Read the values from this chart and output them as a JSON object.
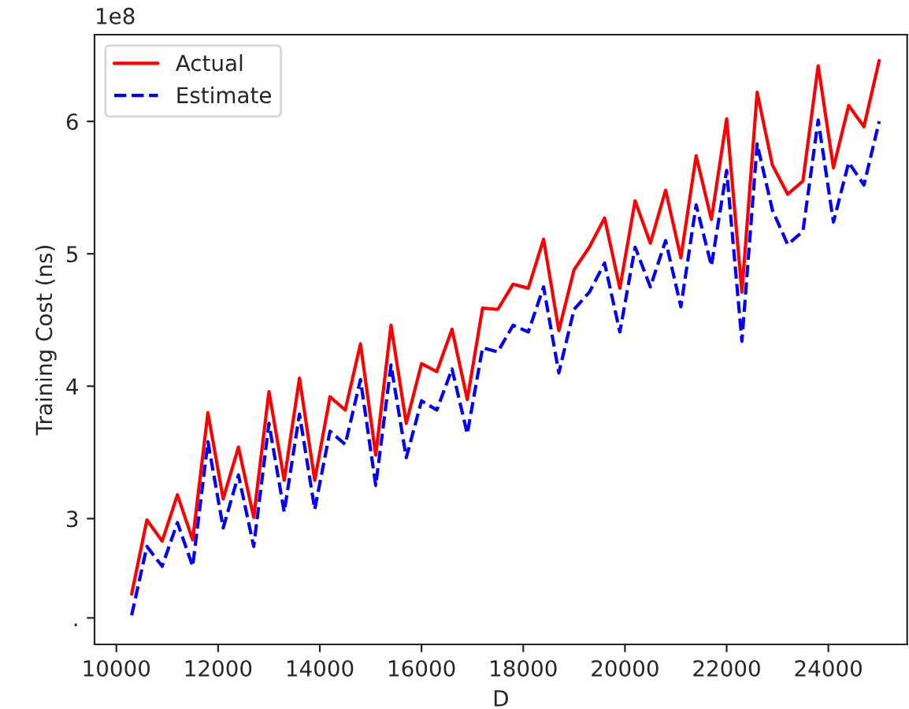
{
  "chart_data": {
    "type": "line",
    "xlabel": "D",
    "ylabel": "Training Cost (ns)",
    "x": [
      10300,
      10600,
      10900,
      11200,
      11500,
      11800,
      12100,
      12400,
      12700,
      13000,
      13300,
      13600,
      13900,
      14200,
      14500,
      14800,
      15100,
      15400,
      15700,
      16000,
      16300,
      16600,
      16900,
      17200,
      17500,
      17800,
      18100,
      18400,
      18700,
      19000,
      19300,
      19600,
      19900,
      20200,
      20500,
      20800,
      21100,
      21400,
      21700,
      22000,
      22300,
      22600,
      22900,
      23200,
      23500,
      23800,
      24100,
      24400,
      24700,
      25000
    ],
    "series": [
      {
        "name": "Actual",
        "color": "#ff0000",
        "line_style": "solid",
        "values": [
          2.43,
          2.99,
          2.83,
          3.18,
          2.84,
          3.8,
          3.15,
          3.54,
          3.01,
          3.96,
          3.29,
          4.06,
          3.29,
          3.92,
          3.82,
          4.32,
          3.48,
          4.46,
          3.72,
          4.17,
          4.11,
          4.43,
          3.9,
          4.59,
          4.58,
          4.77,
          4.74,
          5.11,
          4.42,
          4.88,
          5.05,
          5.27,
          4.74,
          5.4,
          5.08,
          5.48,
          4.97,
          5.74,
          5.26,
          6.02,
          4.71,
          6.22,
          5.67,
          5.45,
          5.55,
          6.42,
          5.65,
          6.12,
          5.96,
          6.46
        ]
      },
      {
        "name": "Estimate",
        "color": "#0000ff",
        "line_style": "dashed",
        "values": [
          2.27,
          2.79,
          2.64,
          2.97,
          2.64,
          3.58,
          2.93,
          3.33,
          2.79,
          3.72,
          3.05,
          3.79,
          3.07,
          3.66,
          3.56,
          4.05,
          3.25,
          4.16,
          3.46,
          3.89,
          3.82,
          4.13,
          3.64,
          4.29,
          4.26,
          4.46,
          4.41,
          4.75,
          4.1,
          4.58,
          4.71,
          4.93,
          4.41,
          5.05,
          4.75,
          5.1,
          4.6,
          5.37,
          4.91,
          5.63,
          4.34,
          5.83,
          5.33,
          5.07,
          5.17,
          6.01,
          5.24,
          5.69,
          5.52,
          6.0
        ]
      }
    ],
    "xlim": [
      9570,
      25550
    ],
    "xticks": [
      10000,
      12000,
      14000,
      16000,
      18000,
      20000,
      22000,
      24000
    ],
    "ylim": [
      2.05,
      6.655
    ],
    "yticks": [
      {
        "value": 2.25,
        "label": "."
      },
      3,
      4,
      5,
      6
    ],
    "annotations": [
      "1e8"
    ],
    "legend": "top left",
    "grid": false,
    "marker": "none"
  }
}
